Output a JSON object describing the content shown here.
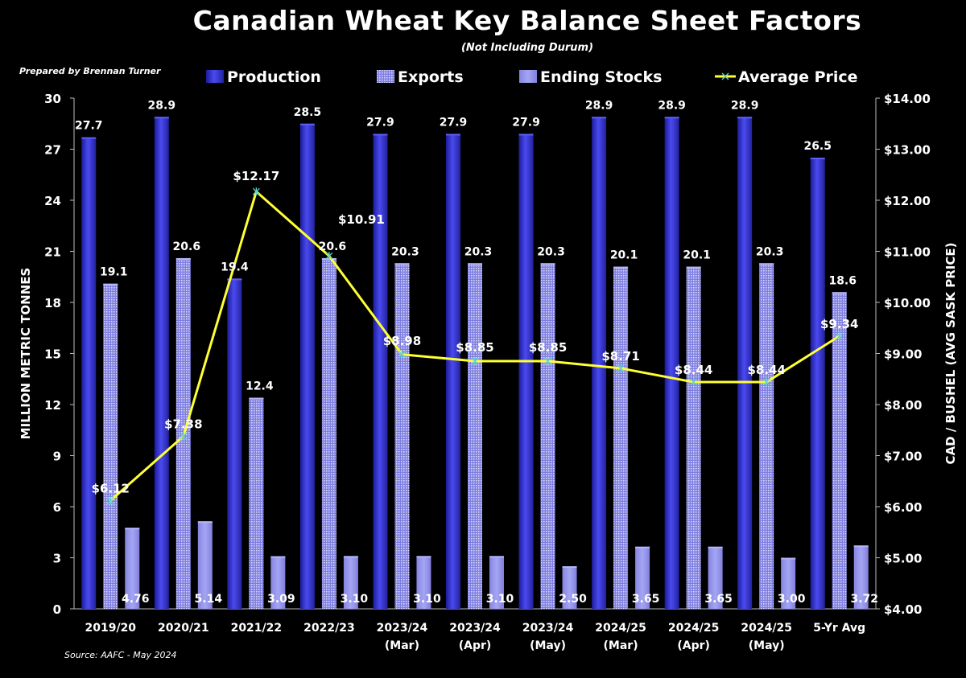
{
  "header": {
    "title": "Canadian Wheat Key Balance Sheet Factors",
    "subtitle": "(Not Including Durum)",
    "prepared_by": "Prepared by Brennan Turner",
    "source": "Source: AAFC -  May 2024"
  },
  "chart_data": {
    "type": "bar",
    "title": "Canadian Wheat Key Balance Sheet Factors",
    "subtitle": "(Not Including Durum)",
    "categories": [
      [
        "2019/20"
      ],
      [
        "2020/21"
      ],
      [
        "2021/22"
      ],
      [
        "2022/23"
      ],
      [
        "2023/24",
        "(Mar)"
      ],
      [
        "2023/24",
        "(Apr)"
      ],
      [
        "2023/24",
        "(May)"
      ],
      [
        "2024/25",
        "(Mar)"
      ],
      [
        "2024/25",
        "(Apr)"
      ],
      [
        "2024/25",
        "(May)"
      ],
      [
        "5-Yr Avg"
      ]
    ],
    "ylabel": "MILLION METRIC TONNES",
    "y2label": "CAD / BUSHEL (AVG SASK PRICE)",
    "ylim": [
      0,
      30
    ],
    "yticks": [
      "0",
      "3",
      "6",
      "9",
      "12",
      "15",
      "18",
      "21",
      "24",
      "27",
      "30"
    ],
    "y2lim": [
      4,
      14
    ],
    "y2ticks": [
      "$4.00",
      "$5.00",
      "$6.00",
      "$7.00",
      "$8.00",
      "$9.00",
      "$10.00",
      "$11.00",
      "$12.00",
      "$13.00",
      "$14.00"
    ],
    "legend_position": "top",
    "series": [
      {
        "name": "Production",
        "type": "bar",
        "axis": "left",
        "color": "#3333cc",
        "values": [
          27.7,
          28.9,
          19.4,
          28.5,
          27.9,
          27.9,
          27.9,
          28.9,
          28.9,
          28.9,
          26.5
        ],
        "labels": [
          "27.7",
          "28.9",
          "19.4",
          "28.5",
          "27.9",
          "27.9",
          "27.9",
          "28.9",
          "28.9",
          "28.9",
          "26.5"
        ]
      },
      {
        "name": "Exports",
        "type": "bar",
        "axis": "left",
        "color": "#8c8ce6",
        "values": [
          19.1,
          20.6,
          12.4,
          20.6,
          20.3,
          20.3,
          20.3,
          20.1,
          20.1,
          20.3,
          18.6
        ],
        "labels": [
          "19.1",
          "20.6",
          "12.4",
          "20.6",
          "20.3",
          "20.3",
          "20.3",
          "20.1",
          "20.1",
          "20.3",
          "18.6"
        ]
      },
      {
        "name": "Ending Stocks",
        "type": "bar",
        "axis": "left",
        "color": "#9999ee",
        "values": [
          4.76,
          5.14,
          3.09,
          3.1,
          3.1,
          3.1,
          2.5,
          3.65,
          3.65,
          3.0,
          3.72
        ],
        "labels": [
          "4.76",
          "5.14",
          "3.09",
          "3.10",
          "3.10",
          "3.10",
          "2.50",
          "3.65",
          "3.65",
          "3.00",
          "3.72"
        ]
      },
      {
        "name": "Average Price",
        "type": "line",
        "axis": "right",
        "color": "#ffff33",
        "values": [
          6.12,
          7.38,
          12.17,
          10.91,
          8.98,
          8.85,
          8.85,
          8.71,
          8.44,
          8.44,
          9.34
        ],
        "labels": [
          "$6.12",
          "$7.38",
          "$12.17",
          "$10.91",
          "$8.98",
          "$8.85",
          "$8.85",
          "$8.71",
          "$8.44",
          "$8.44",
          "$9.34"
        ]
      }
    ]
  }
}
